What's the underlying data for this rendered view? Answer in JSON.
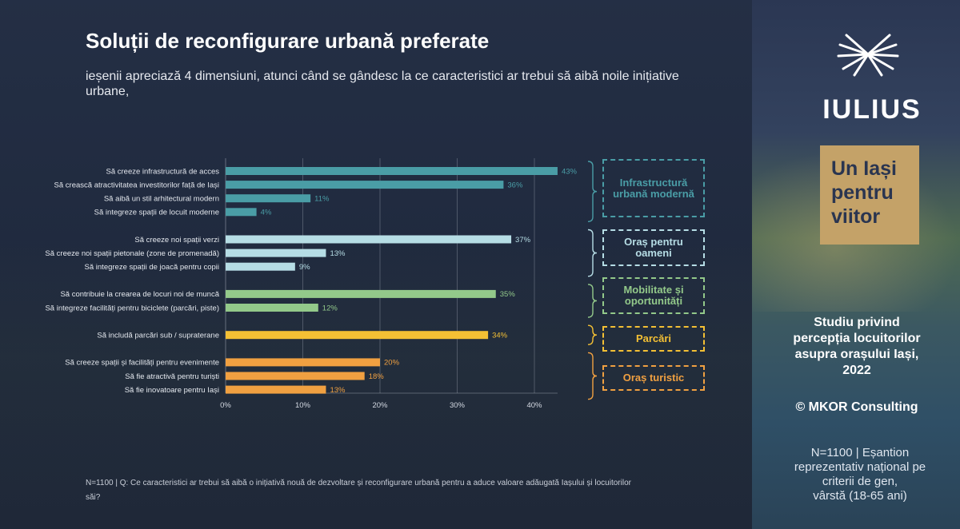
{
  "title": "Soluții de reconfigurare urbană preferate",
  "subtitle": "ieșenii apreciază 4 dimensiuni, atunci când se gândesc la ce caracteristici ar trebui să aibă noile inițiative urbane,",
  "footnote": "N=1100 | Q: Ce caracteristici ar trebui să aibă o inițiativă nouă de dezvoltare și reconfigurare urbană pentru a aduce valoare adăugată Iașului și locuitorilor săi?",
  "chart_data": {
    "type": "bar",
    "orientation": "horizontal",
    "xlim": [
      0,
      45
    ],
    "x_ticks": [
      "0%",
      "10%",
      "20%",
      "30%",
      "40%"
    ],
    "x_tick_values": [
      0,
      10,
      20,
      30,
      40
    ],
    "grid": true,
    "groups": [
      {
        "name": "Infrastructură urbană modernă",
        "color": "#4a9da6",
        "categories": [
          "Să creeze infrastructură de acces",
          "Să crească atractivitatea investitorilor față de Iași",
          "Să aibă un stil arhitectural modern",
          "Să integreze spații de locuit moderne"
        ],
        "values": [
          43,
          36,
          11,
          4
        ],
        "labels": [
          "43%",
          "36%",
          "11%",
          "4%"
        ]
      },
      {
        "name": "Oraș pentru oameni",
        "color": "#b6dde5",
        "categories": [
          "Să creeze noi spații verzi",
          "Să creeze noi spații pietonale (zone de promenadă)",
          "Să integreze spații de joacă pentru copii"
        ],
        "values": [
          37,
          13,
          9
        ],
        "labels": [
          "37%",
          "13%",
          "9%"
        ]
      },
      {
        "name": "Mobilitate și oportunități",
        "color": "#93c98a",
        "categories": [
          "Să contribuie la crearea de locuri noi de muncă",
          "Să integreze facilități pentru biciclete (parcări, piste)"
        ],
        "values": [
          35,
          12
        ],
        "labels": [
          "35%",
          "12%"
        ]
      },
      {
        "name": "Parcări",
        "color": "#f4c034",
        "categories": [
          "Să includă parcări sub / supraterane"
        ],
        "values": [
          34
        ],
        "labels": [
          "34%"
        ]
      },
      {
        "name": "Oraș turistic",
        "color": "#f0a041",
        "categories": [
          "Să creeze spații și facilități pentru evenimente",
          "Să fie atractivă pentru turiști",
          "Să fie inovatoare pentru Iași"
        ],
        "values": [
          20,
          18,
          13
        ],
        "labels": [
          "20%",
          "18%",
          "13%"
        ]
      }
    ]
  },
  "brand": {
    "logo_text": "IULIUS",
    "tagline_lines": [
      "Un Iași",
      "pentru",
      "viitor"
    ],
    "study_lines": [
      "Studiu privind",
      "percepția locuitorilor",
      "asupra orașului Iași,",
      "2022"
    ],
    "copyright": "© MKOR Consulting",
    "sample_lines": [
      "N=1100 | Eșantion",
      "reprezentativ național pe",
      "criterii de gen,",
      "vârstă (18-65 ani)"
    ],
    "gold_color": "#c4a268"
  }
}
